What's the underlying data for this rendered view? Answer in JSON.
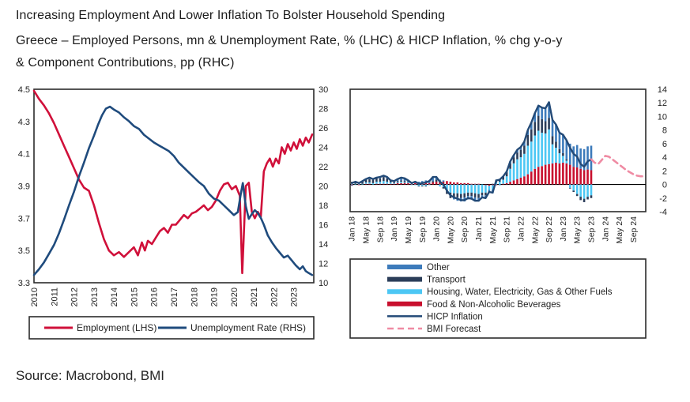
{
  "header": {
    "title": "Increasing Employment And Lower Inflation To Bolster Household Spending",
    "subtitle_line1": "Greece – Employed Persons, mn & Unemployment Rate, % (LHC) & HICP Inflation, % chg y-o-y",
    "subtitle_line2": "& Component Contributions, pp (RHC)"
  },
  "footer": {
    "source": "Source: Macrobond, BMI"
  },
  "colors": {
    "employment_red": "#d0103a",
    "unemployment_navy": "#1f4b7d",
    "food_red": "#c8102e",
    "housing_cyan": "#4cc7f4",
    "transport_navy": "#2b3d59",
    "other_steel": "#3d7bbb",
    "hicp_navy": "#234a77",
    "forecast_pink": "#ef8ba3",
    "frame": "#2b2b2b",
    "zero_line": "#000000"
  },
  "chart_data": [
    {
      "type": "line",
      "panel": "LHC",
      "title": "Employed Persons, mn & Unemployment Rate, %",
      "x_range": [
        2010,
        2024
      ],
      "x_ticks": [
        "2010",
        "2011",
        "2012",
        "2013",
        "2014",
        "2015",
        "2016",
        "2017",
        "2018",
        "2019",
        "2020",
        "2021",
        "2022",
        "2023"
      ],
      "left_axis": {
        "min": 3.3,
        "max": 4.5,
        "ticks": [
          "4.5",
          "4.3",
          "4.1",
          "3.9",
          "3.7",
          "3.5",
          "3.3"
        ]
      },
      "right_axis": {
        "min": 10,
        "max": 30,
        "ticks": [
          "30",
          "28",
          "26",
          "24",
          "22",
          "20",
          "18",
          "16",
          "14",
          "12",
          "10"
        ]
      },
      "legend": [
        "Employment (LHS)",
        "Unemployment Rate (RHS)"
      ],
      "series": [
        {
          "name": "Employment (LHS)",
          "axis": "left",
          "color_key": "employment_red",
          "x": [
            2010.0,
            2010.25,
            2010.5,
            2010.75,
            2011.0,
            2011.25,
            2011.5,
            2011.75,
            2012.0,
            2012.25,
            2012.5,
            2012.75,
            2013.0,
            2013.25,
            2013.5,
            2013.75,
            2014.0,
            2014.25,
            2014.5,
            2014.75,
            2015.0,
            2015.2,
            2015.4,
            2015.55,
            2015.7,
            2015.9,
            2016.1,
            2016.3,
            2016.5,
            2016.7,
            2016.9,
            2017.1,
            2017.3,
            2017.5,
            2017.7,
            2017.9,
            2018.1,
            2018.3,
            2018.5,
            2018.7,
            2018.9,
            2019.1,
            2019.3,
            2019.5,
            2019.7,
            2019.9,
            2020.1,
            2020.3,
            2020.42,
            2020.5,
            2020.6,
            2020.75,
            2020.9,
            2021.05,
            2021.2,
            2021.35,
            2021.5,
            2021.65,
            2021.8,
            2021.95,
            2022.1,
            2022.25,
            2022.4,
            2022.55,
            2022.7,
            2022.85,
            2023.0,
            2023.15,
            2023.3,
            2023.45,
            2023.6,
            2023.75,
            2023.92
          ],
          "values": [
            4.49,
            4.44,
            4.4,
            4.35,
            4.29,
            4.22,
            4.15,
            4.08,
            4.01,
            3.94,
            3.89,
            3.87,
            3.78,
            3.67,
            3.57,
            3.5,
            3.47,
            3.49,
            3.46,
            3.49,
            3.52,
            3.47,
            3.55,
            3.5,
            3.56,
            3.54,
            3.58,
            3.62,
            3.64,
            3.61,
            3.66,
            3.66,
            3.69,
            3.72,
            3.7,
            3.73,
            3.74,
            3.76,
            3.78,
            3.75,
            3.77,
            3.81,
            3.87,
            3.91,
            3.92,
            3.88,
            3.9,
            3.84,
            3.36,
            3.6,
            3.9,
            3.92,
            3.74,
            3.7,
            3.74,
            3.71,
            3.99,
            4.04,
            4.07,
            4.02,
            4.07,
            4.04,
            4.14,
            4.1,
            4.16,
            4.12,
            4.17,
            4.13,
            4.19,
            4.15,
            4.2,
            4.17,
            4.22
          ]
        },
        {
          "name": "Unemployment Rate (RHS)",
          "axis": "right",
          "color_key": "unemployment_navy",
          "x": [
            2010.0,
            2010.25,
            2010.5,
            2010.75,
            2011.0,
            2011.25,
            2011.5,
            2011.75,
            2012.0,
            2012.25,
            2012.5,
            2012.75,
            2013.0,
            2013.2,
            2013.4,
            2013.6,
            2013.8,
            2014.0,
            2014.25,
            2014.5,
            2014.75,
            2015.0,
            2015.25,
            2015.5,
            2015.75,
            2016.0,
            2016.25,
            2016.5,
            2016.75,
            2017.0,
            2017.25,
            2017.5,
            2017.75,
            2018.0,
            2018.25,
            2018.5,
            2018.75,
            2019.0,
            2019.25,
            2019.5,
            2019.75,
            2020.0,
            2020.2,
            2020.35,
            2020.45,
            2020.6,
            2020.75,
            2020.9,
            2021.05,
            2021.2,
            2021.35,
            2021.5,
            2021.7,
            2021.9,
            2022.1,
            2022.3,
            2022.5,
            2022.7,
            2022.9,
            2023.1,
            2023.3,
            2023.45,
            2023.6,
            2023.75,
            2023.92
          ],
          "values": [
            10.8,
            11.4,
            12.1,
            13.0,
            13.9,
            15.1,
            16.5,
            18.0,
            19.4,
            21.0,
            22.4,
            23.9,
            25.2,
            26.3,
            27.3,
            28.0,
            28.2,
            27.9,
            27.6,
            27.1,
            26.7,
            26.2,
            25.9,
            25.3,
            24.9,
            24.5,
            24.2,
            23.9,
            23.6,
            23.1,
            22.4,
            21.9,
            21.4,
            20.9,
            20.4,
            20.0,
            19.2,
            18.7,
            18.5,
            18.0,
            17.5,
            17.0,
            17.3,
            19.2,
            20.3,
            17.9,
            16.6,
            17.1,
            17.5,
            17.2,
            16.7,
            16.0,
            14.9,
            14.2,
            13.6,
            13.1,
            12.6,
            12.8,
            12.3,
            11.8,
            11.4,
            11.7,
            11.2,
            11.0,
            10.8
          ]
        }
      ]
    },
    {
      "type": "bar",
      "panel": "RHC",
      "title": "HICP Inflation, % chg y-o-y & Component Contributions, pp",
      "months_total": 84,
      "bar_months": 69,
      "x_tick_step": 4,
      "x_ticks": [
        "Jan 18",
        "May 18",
        "Sep 18",
        "Jan 19",
        "May 19",
        "Sep 19",
        "Jan 20",
        "May 20",
        "Sep 20",
        "Jan 21",
        "May 21",
        "Sep 21",
        "Jan 22",
        "May 22",
        "Sep 22",
        "Jan 23",
        "May 23",
        "Sep 23",
        "Jan 24",
        "May 24",
        "Sep 24"
      ],
      "right_axis": {
        "min": -4,
        "max": 14,
        "ticks": [
          "14",
          "12",
          "10",
          "8",
          "6",
          "4",
          "2",
          "0",
          "-2",
          "-4"
        ]
      },
      "legend": [
        "Other",
        "Transport",
        "Housing, Water, Electricity, Gas & Other Fuels",
        "Food & Non-Alcoholic Beverages",
        "HICP Inflation",
        "BMI Forecast"
      ],
      "stack_order": [
        "food",
        "housing",
        "transport",
        "other"
      ],
      "series": [
        {
          "name": "Food & Non-Alcoholic Beverages",
          "key": "food",
          "color_key": "food_red",
          "values": [
            -0.1,
            0.0,
            -0.1,
            0.0,
            0.1,
            0.1,
            0.0,
            0.1,
            0.1,
            0.1,
            0.1,
            0.1,
            0.1,
            0.2,
            0.2,
            0.2,
            0.2,
            0.1,
            0.2,
            0.1,
            0.2,
            0.2,
            0.2,
            0.3,
            0.4,
            0.4,
            0.4,
            0.5,
            0.4,
            0.3,
            0.3,
            0.2,
            0.2,
            0.2,
            0.1,
            0.1,
            0.1,
            0.0,
            -0.1,
            -0.2,
            -0.1,
            -0.1,
            0.0,
            0.1,
            0.2,
            0.4,
            0.6,
            0.8,
            1.0,
            1.2,
            1.5,
            1.9,
            2.3,
            2.6,
            2.7,
            2.9,
            3.0,
            3.1,
            3.2,
            3.1,
            3.2,
            3.1,
            2.9,
            2.6,
            2.5,
            2.3,
            2.1,
            2.2,
            2.1
          ]
        },
        {
          "name": "Housing, Water, Electricity, Gas & Other Fuels",
          "key": "housing",
          "color_key": "housing_cyan",
          "values": [
            0.1,
            0.1,
            0.1,
            0.1,
            0.2,
            0.2,
            0.2,
            0.3,
            0.3,
            0.4,
            0.3,
            0.2,
            0.1,
            0.1,
            0.2,
            0.1,
            0.1,
            -0.1,
            -0.1,
            -0.2,
            -0.2,
            -0.2,
            -0.1,
            0.0,
            0.0,
            -0.3,
            -0.4,
            -0.8,
            -1.2,
            -1.3,
            -1.3,
            -1.4,
            -1.3,
            -1.2,
            -1.2,
            -1.3,
            -1.4,
            -1.2,
            -1.1,
            -0.6,
            -0.7,
            0.3,
            0.4,
            0.6,
            1.0,
            1.9,
            2.5,
            2.9,
            3.0,
            3.3,
            4.2,
            4.4,
            4.9,
            5.3,
            4.9,
            4.6,
            5.1,
            2.8,
            2.2,
            1.5,
            1.0,
            0.4,
            -0.5,
            -0.9,
            -1.4,
            -1.8,
            -2.1,
            -1.8,
            -1.6
          ]
        },
        {
          "name": "Transport",
          "key": "transport",
          "color_key": "transport_navy",
          "values": [
            0.3,
            0.3,
            0.2,
            0.3,
            0.4,
            0.5,
            0.5,
            0.5,
            0.5,
            0.6,
            0.5,
            0.2,
            0.1,
            0.2,
            0.2,
            0.2,
            0.1,
            0.0,
            0.0,
            -0.1,
            -0.1,
            -0.1,
            0.0,
            0.2,
            0.3,
            0.1,
            -0.2,
            -0.6,
            -0.8,
            -0.7,
            -0.6,
            -0.6,
            -0.6,
            -0.5,
            -0.5,
            -0.6,
            -0.6,
            -0.4,
            -0.4,
            0.0,
            0.1,
            0.4,
            0.4,
            0.5,
            0.6,
            0.8,
            0.9,
            1.0,
            1.1,
            1.2,
            1.6,
            1.8,
            2.0,
            2.2,
            2.0,
            1.8,
            1.7,
            1.2,
            0.9,
            0.6,
            0.4,
            0.2,
            -0.1,
            -0.2,
            -0.3,
            -0.5,
            -0.5,
            -0.4,
            -0.4
          ]
        },
        {
          "name": "Other",
          "key": "other",
          "color_key": "other_steel",
          "values": [
            -0.1,
            0.0,
            0.0,
            0.1,
            0.1,
            0.2,
            0.1,
            0.1,
            0.2,
            0.2,
            0.2,
            0.1,
            0.2,
            0.3,
            0.4,
            0.4,
            0.2,
            0.2,
            0.3,
            0.3,
            0.3,
            0.4,
            0.4,
            0.6,
            0.4,
            0.2,
            0.2,
            0.0,
            0.0,
            -0.2,
            -0.5,
            -0.5,
            -0.6,
            -0.5,
            -0.5,
            -0.6,
            -0.5,
            -0.3,
            -0.4,
            -0.3,
            -0.5,
            0.0,
            -0.1,
            0.0,
            0.1,
            0.3,
            0.3,
            0.4,
            0.4,
            0.6,
            0.7,
            1.0,
            1.3,
            1.5,
            1.7,
            1.9,
            2.3,
            2.4,
            2.5,
            2.4,
            2.7,
            2.8,
            3.1,
            3.0,
            3.3,
            3.0,
            3.1,
            3.4,
            3.6
          ]
        }
      ],
      "line": {
        "name": "HICP Inflation",
        "color_key": "hicp_navy",
        "values": [
          0.2,
          0.4,
          0.2,
          0.5,
          0.8,
          1.0,
          0.8,
          1.0,
          1.1,
          1.3,
          1.1,
          0.6,
          0.5,
          0.8,
          1.0,
          0.9,
          0.6,
          0.2,
          0.4,
          0.1,
          0.2,
          0.3,
          0.5,
          1.1,
          1.1,
          0.4,
          0.0,
          -0.9,
          -1.6,
          -1.9,
          -2.1,
          -2.3,
          -2.3,
          -2.0,
          -2.1,
          -2.4,
          -2.4,
          -1.9,
          -2.0,
          -1.1,
          -1.2,
          0.6,
          0.7,
          1.2,
          1.9,
          3.4,
          4.3,
          5.1,
          5.5,
          6.3,
          8.0,
          9.1,
          10.5,
          11.6,
          11.3,
          11.2,
          12.1,
          9.5,
          8.8,
          7.6,
          7.3,
          6.5,
          5.4,
          4.5,
          4.1,
          3.0,
          2.6,
          3.4,
          3.7
        ]
      },
      "forecast": {
        "name": "BMI Forecast",
        "color_key": "forecast_pink",
        "start_month_index": 68,
        "values": [
          3.7,
          3.2,
          3.0,
          3.6,
          4.2,
          4.1,
          3.7,
          3.3,
          2.9,
          2.5,
          2.1,
          1.8,
          1.5,
          1.3,
          1.2,
          1.2
        ]
      }
    }
  ]
}
